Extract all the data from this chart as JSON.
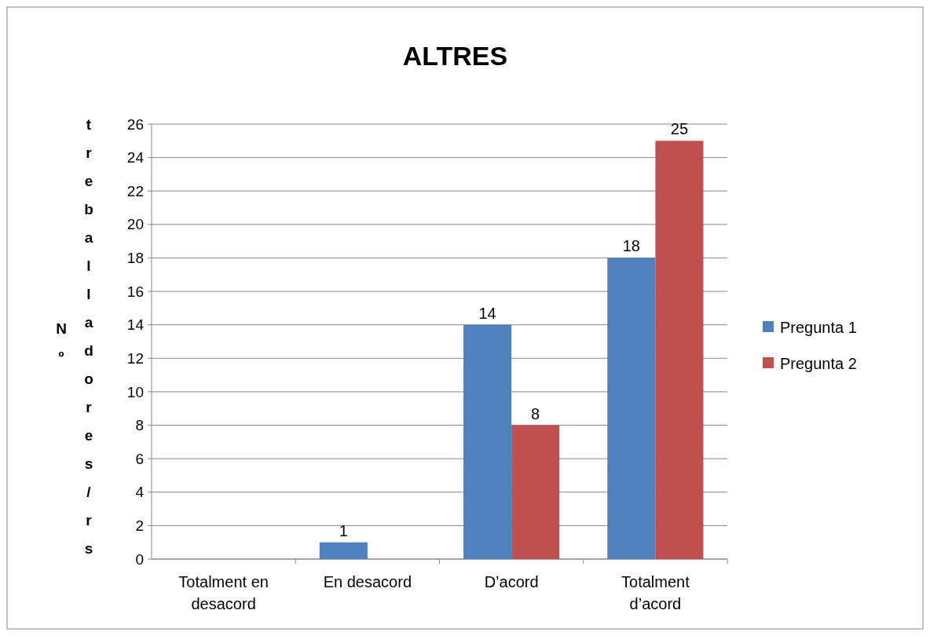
{
  "chart_data": {
    "type": "bar",
    "title": "ALTRES",
    "ylabel": "Nº treballadores/rs",
    "categories": [
      "Totalment en desacord",
      "En desacord",
      "D’acord",
      "Totalment d’acord"
    ],
    "series": [
      {
        "name": "Pregunta 1",
        "color": "#4f81bd",
        "values": [
          null,
          1,
          14,
          18
        ]
      },
      {
        "name": "Pregunta 2",
        "color": "#c0504d",
        "values": [
          null,
          null,
          8,
          25
        ]
      }
    ],
    "ylim": [
      0,
      26
    ],
    "yticks": [
      0,
      2,
      4,
      6,
      8,
      10,
      12,
      14,
      16,
      18,
      20,
      22,
      24,
      26
    ],
    "grid": "y",
    "legend": "right",
    "data_labels": true
  }
}
